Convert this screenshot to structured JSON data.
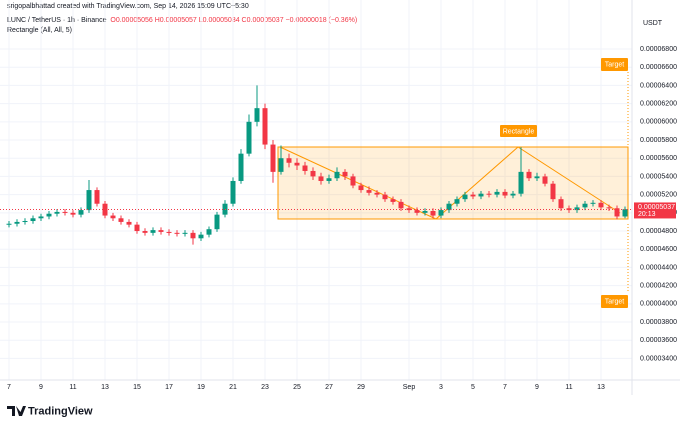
{
  "header": {
    "credit": "srigopalbhattad created with TradingView.com, Sep 14, 2026 15:09 UTC+5:30",
    "symbol": "LUNC / TetherUS · 1h · Binance",
    "ohlc": "O0.00005056 H0.00005057 L0.00005034 C0.00005037 −0.00000018 (−0.36%)",
    "indicator": "Rectangle (All, All, 5)",
    "currency": "USDT",
    "logo": "TradingView"
  },
  "drawings": {
    "rectangle_label": "Rectangle",
    "target_top": "Target",
    "target_bottom": "Target"
  },
  "chart_data": {
    "type": "candlestick",
    "categories": [
      "7",
      null,
      null,
      null,
      "9",
      null,
      null,
      null,
      "11",
      null,
      null,
      null,
      "13",
      null,
      null,
      null,
      "15",
      null,
      null,
      null,
      "17",
      null,
      null,
      null,
      "19",
      null,
      null,
      null,
      "21",
      null,
      null,
      null,
      "23",
      null,
      null,
      null,
      "25",
      null,
      null,
      null,
      "27",
      null,
      null,
      null,
      "29",
      null,
      null,
      null,
      null,
      null,
      "Sep",
      null,
      null,
      null,
      "3",
      null,
      null,
      null,
      "5",
      null,
      null,
      null,
      "7",
      null,
      null,
      null,
      "9",
      null,
      null,
      null,
      "11",
      null,
      null,
      null,
      "13",
      null,
      null,
      null
    ],
    "open": [
      4.87e-05,
      4.88e-05,
      4.9e-05,
      4.91e-05,
      4.94e-05,
      4.96e-05,
      4.99e-05,
      5.01e-05,
      5e-05,
      4.98e-05,
      5.03e-05,
      5.25e-05,
      5.1e-05,
      4.97e-05,
      4.94e-05,
      4.9e-05,
      4.87e-05,
      4.8e-05,
      4.78e-05,
      4.81e-05,
      4.79e-05,
      4.78e-05,
      4.77e-05,
      4.78e-05,
      4.72e-05,
      4.76e-05,
      4.82e-05,
      4.98e-05,
      5.1e-05,
      5.35e-05,
      5.65e-05,
      6e-05,
      6.15e-05,
      5.75e-05,
      5.45e-05,
      5.6e-05,
      5.55e-05,
      5.52e-05,
      5.46e-05,
      5.4e-05,
      5.35e-05,
      5.38e-05,
      5.45e-05,
      5.4e-05,
      5.3e-05,
      5.25e-05,
      5.22e-05,
      5.2e-05,
      5.15e-05,
      5.12e-05,
      5.05e-05,
      5.03e-05,
      5e-05,
      5.02e-05,
      4.97e-05,
      5.03e-05,
      5.1e-05,
      5.15e-05,
      5.2e-05,
      5.18e-05,
      5.21e-05,
      5.2e-05,
      5.23e-05,
      5.19e-05,
      5.21e-05,
      5.45e-05,
      5.38e-05,
      5.4e-05,
      5.32e-05,
      5.15e-05,
      5.05e-05,
      5.03e-05,
      5.06e-05,
      5.1e-05,
      5.11e-05,
      5.06e-05,
      5.05e-05,
      4.96e-05
    ],
    "high": [
      4.91e-05,
      4.93e-05,
      4.94e-05,
      4.97e-05,
      4.99e-05,
      5.02e-05,
      5.04e-05,
      5.04e-05,
      5.03e-05,
      5.06e-05,
      5.36e-05,
      5.28e-05,
      5.13e-05,
      5e-05,
      4.97e-05,
      4.93e-05,
      4.9e-05,
      4.83e-05,
      4.84e-05,
      4.84e-05,
      4.82e-05,
      4.81e-05,
      4.81e-05,
      4.81e-05,
      4.79e-05,
      4.85e-05,
      5.01e-05,
      5.14e-05,
      5.39e-05,
      5.7e-05,
      6.08e-05,
      6.4e-05,
      6.2e-05,
      5.8e-05,
      5.74e-05,
      5.65e-05,
      5.6e-05,
      5.56e-05,
      5.5e-05,
      5.44e-05,
      5.42e-05,
      5.5e-05,
      5.48e-05,
      5.43e-05,
      5.33e-05,
      5.29e-05,
      5.25e-05,
      5.23e-05,
      5.18e-05,
      5.15e-05,
      5.08e-05,
      5.06e-05,
      5.05e-05,
      5.05e-05,
      5.06e-05,
      5.13e-05,
      5.18e-05,
      5.23e-05,
      5.23e-05,
      5.24e-05,
      5.24e-05,
      5.26e-05,
      5.26e-05,
      5.24e-05,
      5.72e-05,
      5.48e-05,
      5.44e-05,
      5.43e-05,
      5.35e-05,
      5.18e-05,
      5.08e-05,
      5.09e-05,
      5.13e-05,
      5.14e-05,
      5.14e-05,
      5.09e-05,
      5.08e-05,
      5.07e-05
    ],
    "low": [
      4.84e-05,
      4.85e-05,
      4.87e-05,
      4.88e-05,
      4.91e-05,
      4.93e-05,
      4.96e-05,
      4.97e-05,
      4.95e-05,
      4.95e-05,
      5e-05,
      5.07e-05,
      4.94e-05,
      4.91e-05,
      4.87e-05,
      4.84e-05,
      4.77e-05,
      4.75e-05,
      4.75e-05,
      4.76e-05,
      4.75e-05,
      4.74e-05,
      4.74e-05,
      4.65e-05,
      4.69e-05,
      4.73e-05,
      4.79e-05,
      4.95e-05,
      5.07e-05,
      5.32e-05,
      5.62e-05,
      5.95e-05,
      5.7e-05,
      5.33e-05,
      5.42e-05,
      5.5e-05,
      5.47e-05,
      5.42e-05,
      5.36e-05,
      5.31e-05,
      5.32e-05,
      5.35e-05,
      5.36e-05,
      5.27e-05,
      5.22e-05,
      5.19e-05,
      5.17e-05,
      5.12e-05,
      5.09e-05,
      5.02e-05,
      5e-05,
      4.97e-05,
      4.97e-05,
      4.94e-05,
      4.94e-05,
      5e-05,
      5.07e-05,
      5.12e-05,
      5.15e-05,
      5.15e-05,
      5.17e-05,
      5.17e-05,
      5.16e-05,
      5.16e-05,
      5.18e-05,
      5.35e-05,
      5.35e-05,
      5.29e-05,
      5.12e-05,
      5.02e-05,
      5e-05,
      5e-05,
      5.03e-05,
      5.07e-05,
      5.03e-05,
      5.02e-05,
      4.93e-05,
      4.94e-05
    ],
    "close": [
      4.88e-05,
      4.9e-05,
      4.91e-05,
      4.94e-05,
      4.96e-05,
      4.99e-05,
      5.01e-05,
      5e-05,
      4.98e-05,
      5.03e-05,
      5.25e-05,
      5.1e-05,
      4.97e-05,
      4.94e-05,
      4.9e-05,
      4.87e-05,
      4.8e-05,
      4.78e-05,
      4.81e-05,
      4.79e-05,
      4.78e-05,
      4.77e-05,
      4.78e-05,
      4.72e-05,
      4.76e-05,
      4.82e-05,
      4.98e-05,
      5.1e-05,
      5.35e-05,
      5.65e-05,
      6e-05,
      6.15e-05,
      5.75e-05,
      5.45e-05,
      5.6e-05,
      5.55e-05,
      5.52e-05,
      5.46e-05,
      5.4e-05,
      5.35e-05,
      5.38e-05,
      5.45e-05,
      5.4e-05,
      5.3e-05,
      5.25e-05,
      5.22e-05,
      5.2e-05,
      5.15e-05,
      5.12e-05,
      5.05e-05,
      5.03e-05,
      5e-05,
      5.02e-05,
      4.97e-05,
      5.03e-05,
      5.1e-05,
      5.15e-05,
      5.2e-05,
      5.18e-05,
      5.21e-05,
      5.2e-05,
      5.23e-05,
      5.19e-05,
      5.21e-05,
      5.45e-05,
      5.38e-05,
      5.4e-05,
      5.32e-05,
      5.15e-05,
      5.05e-05,
      5.03e-05,
      5.06e-05,
      5.1e-05,
      5.11e-05,
      5.06e-05,
      5.05e-05,
      4.96e-05,
      5.04e-05
    ],
    "up_color": "#089981",
    "down_color": "#f23645",
    "ylim": [
      3.163e-05,
      6.899e-05
    ],
    "yticks": [
      {
        "value": 3.4e-05,
        "label": "0.00003400"
      },
      {
        "value": 3.6e-05,
        "label": "0.00003600"
      },
      {
        "value": 3.8e-05,
        "label": "0.00003800"
      },
      {
        "value": 4e-05,
        "label": "0.00004000"
      },
      {
        "value": 4.2e-05,
        "label": "0.00004200"
      },
      {
        "value": 4.4e-05,
        "label": "0.00004400"
      },
      {
        "value": 4.6e-05,
        "label": "0.00004600"
      },
      {
        "value": 4.8e-05,
        "label": "0.00004800"
      },
      {
        "value": 5e-05,
        "label": "0.00005000"
      },
      {
        "value": 5.2e-05,
        "label": "0.00005200"
      },
      {
        "value": 5.4e-05,
        "label": "0.00005400"
      },
      {
        "value": 5.6e-05,
        "label": "0.00005600"
      },
      {
        "value": 5.8e-05,
        "label": "0.00005800"
      },
      {
        "value": 6e-05,
        "label": "0.00006000"
      },
      {
        "value": 6.2e-05,
        "label": "0.00006200"
      },
      {
        "value": 6.4e-05,
        "label": "0.00006400"
      },
      {
        "value": 6.6e-05,
        "label": "0.00006600"
      },
      {
        "value": 6.8e-05,
        "label": "0.00006800"
      }
    ],
    "grid": true,
    "last_price": 5.037e-05,
    "countdown": "20:13"
  }
}
